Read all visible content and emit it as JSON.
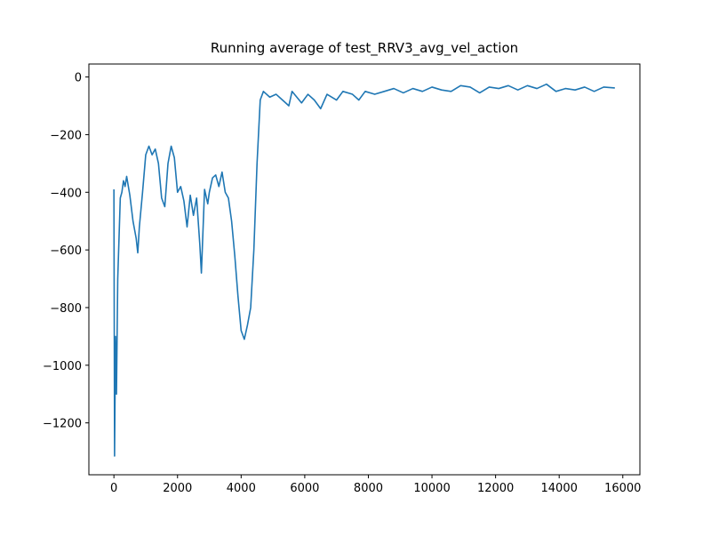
{
  "chart_data": {
    "type": "line",
    "title": "Running average of test_RRV3_avg_vel_action",
    "x": [
      0,
      20,
      50,
      80,
      120,
      200,
      250,
      300,
      350,
      400,
      500,
      600,
      700,
      750,
      800,
      900,
      1000,
      1100,
      1200,
      1300,
      1400,
      1500,
      1600,
      1700,
      1800,
      1900,
      2000,
      2100,
      2200,
      2300,
      2400,
      2500,
      2600,
      2700,
      2750,
      2850,
      2950,
      3000,
      3100,
      3200,
      3300,
      3400,
      3500,
      3600,
      3700,
      3800,
      3900,
      4000,
      4100,
      4200,
      4300,
      4400,
      4500,
      4600,
      4700,
      4900,
      5100,
      5300,
      5500,
      5600,
      5900,
      6100,
      6300,
      6500,
      6700,
      7000,
      7200,
      7500,
      7700,
      7900,
      8200,
      8500,
      8800,
      9100,
      9400,
      9700,
      10000,
      10300,
      10600,
      10900,
      11200,
      11500,
      11800,
      12100,
      12400,
      12700,
      13000,
      13300,
      13600,
      13900,
      14200,
      14500,
      14800,
      15100,
      15400,
      15750
    ],
    "series": [
      {
        "color": "#1f77b4",
        "values": [
          -390,
          -1315,
          -900,
          -1100,
          -700,
          -420,
          -400,
          -360,
          -380,
          -345,
          -410,
          -500,
          -560,
          -610,
          -520,
          -400,
          -270,
          -240,
          -270,
          -250,
          -300,
          -420,
          -450,
          -300,
          -240,
          -280,
          -400,
          -380,
          -430,
          -520,
          -410,
          -480,
          -420,
          -580,
          -680,
          -390,
          -440,
          -400,
          -350,
          -340,
          -380,
          -330,
          -400,
          -420,
          -500,
          -620,
          -760,
          -880,
          -910,
          -860,
          -800,
          -600,
          -300,
          -80,
          -50,
          -70,
          -60,
          -80,
          -100,
          -50,
          -90,
          -60,
          -80,
          -110,
          -60,
          -80,
          -50,
          -60,
          -80,
          -50,
          -60,
          -50,
          -40,
          -55,
          -40,
          -50,
          -35,
          -45,
          -50,
          -30,
          -35,
          -55,
          -35,
          -40,
          -30,
          -45,
          -30,
          -40,
          -25,
          -50,
          -40,
          -45,
          -35,
          -50,
          -35,
          -38
        ]
      }
    ],
    "xlim": [
      -787.5,
      16537.5
    ],
    "ylim": [
      -1380,
      45
    ],
    "xticks": [
      0,
      2000,
      4000,
      6000,
      8000,
      10000,
      12000,
      14000,
      16000
    ],
    "yticks": [
      {
        "value": -1200,
        "label": "−1200"
      },
      {
        "value": -1000,
        "label": "−1000"
      },
      {
        "value": -800,
        "label": "−800"
      },
      {
        "value": -600,
        "label": "−600"
      },
      {
        "value": -400,
        "label": "−400"
      },
      {
        "value": -200,
        "label": "−200"
      },
      0
    ]
  }
}
